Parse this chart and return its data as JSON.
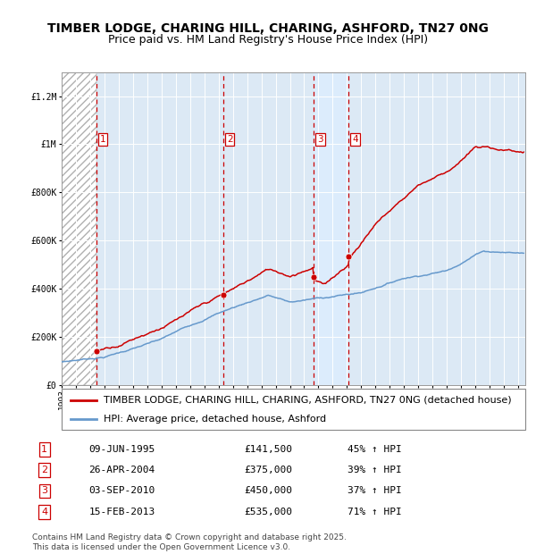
{
  "title": "TIMBER LODGE, CHARING HILL, CHARING, ASHFORD, TN27 0NG",
  "subtitle": "Price paid vs. HM Land Registry's House Price Index (HPI)",
  "ylim": [
    0,
    1300000
  ],
  "yticks": [
    0,
    200000,
    400000,
    600000,
    800000,
    1000000,
    1200000
  ],
  "ytick_labels": [
    "£0",
    "£200K",
    "£400K",
    "£600K",
    "£800K",
    "£1M",
    "£1.2M"
  ],
  "xlim_start": 1993.0,
  "xlim_end": 2025.5,
  "sale_dates": [
    1995.44,
    2004.32,
    2010.67,
    2013.12
  ],
  "sale_prices": [
    141500,
    375000,
    450000,
    535000
  ],
  "sale_labels": [
    "1",
    "2",
    "3",
    "4"
  ],
  "sale_info": [
    {
      "num": "1",
      "date": "09-JUN-1995",
      "price": "£141,500",
      "hpi": "45% ↑ HPI"
    },
    {
      "num": "2",
      "date": "26-APR-2004",
      "price": "£375,000",
      "hpi": "39% ↑ HPI"
    },
    {
      "num": "3",
      "date": "03-SEP-2010",
      "price": "£450,000",
      "hpi": "37% ↑ HPI"
    },
    {
      "num": "4",
      "date": "15-FEB-2013",
      "price": "£535,000",
      "hpi": "71% ↑ HPI"
    }
  ],
  "legend_property_label": "TIMBER LODGE, CHARING HILL, CHARING, ASHFORD, TN27 0NG (detached house)",
  "legend_hpi_label": "HPI: Average price, detached house, Ashford",
  "footnote": "Contains HM Land Registry data © Crown copyright and database right 2025.\nThis data is licensed under the Open Government Licence v3.0.",
  "property_line_color": "#cc0000",
  "hpi_line_color": "#6699cc",
  "sale_marker_color": "#cc0000",
  "dashed_line_color": "#cc0000",
  "highlight_color": "#ddeeff",
  "plot_bg_color": "#dce9f5",
  "title_fontsize": 10,
  "subtitle_fontsize": 9,
  "tick_fontsize": 7,
  "legend_fontsize": 8,
  "table_fontsize": 8,
  "footnote_fontsize": 6.5
}
